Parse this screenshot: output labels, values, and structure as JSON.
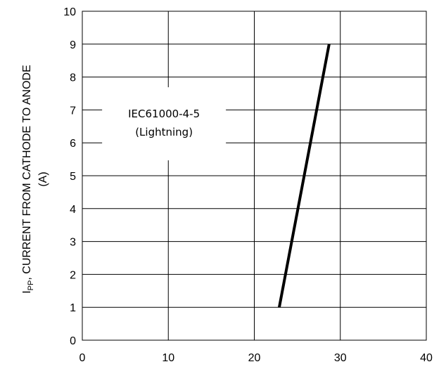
{
  "chart_data": {
    "type": "line",
    "title": "",
    "xlabel": "",
    "ylabel": {
      "prefix": "I",
      "subscript": "PP",
      "line1_rest": ", CURRENT FROM CATHODE TO ANODE",
      "line2": "(A)"
    },
    "xlim": [
      0,
      40
    ],
    "ylim": [
      0,
      10
    ],
    "xticks": [
      0,
      10,
      20,
      30,
      40
    ],
    "yticks": [
      0,
      1,
      2,
      3,
      4,
      5,
      6,
      7,
      8,
      9,
      10
    ],
    "grid": true,
    "series": [
      {
        "x": [
          22.9,
          28.7
        ],
        "y": [
          1,
          9
        ],
        "color": "#000000"
      }
    ],
    "annotations": [
      {
        "lines": [
          "IEC61000-4-5",
          "(Lightning)"
        ],
        "x": 9.5,
        "y": 6.6
      }
    ]
  }
}
